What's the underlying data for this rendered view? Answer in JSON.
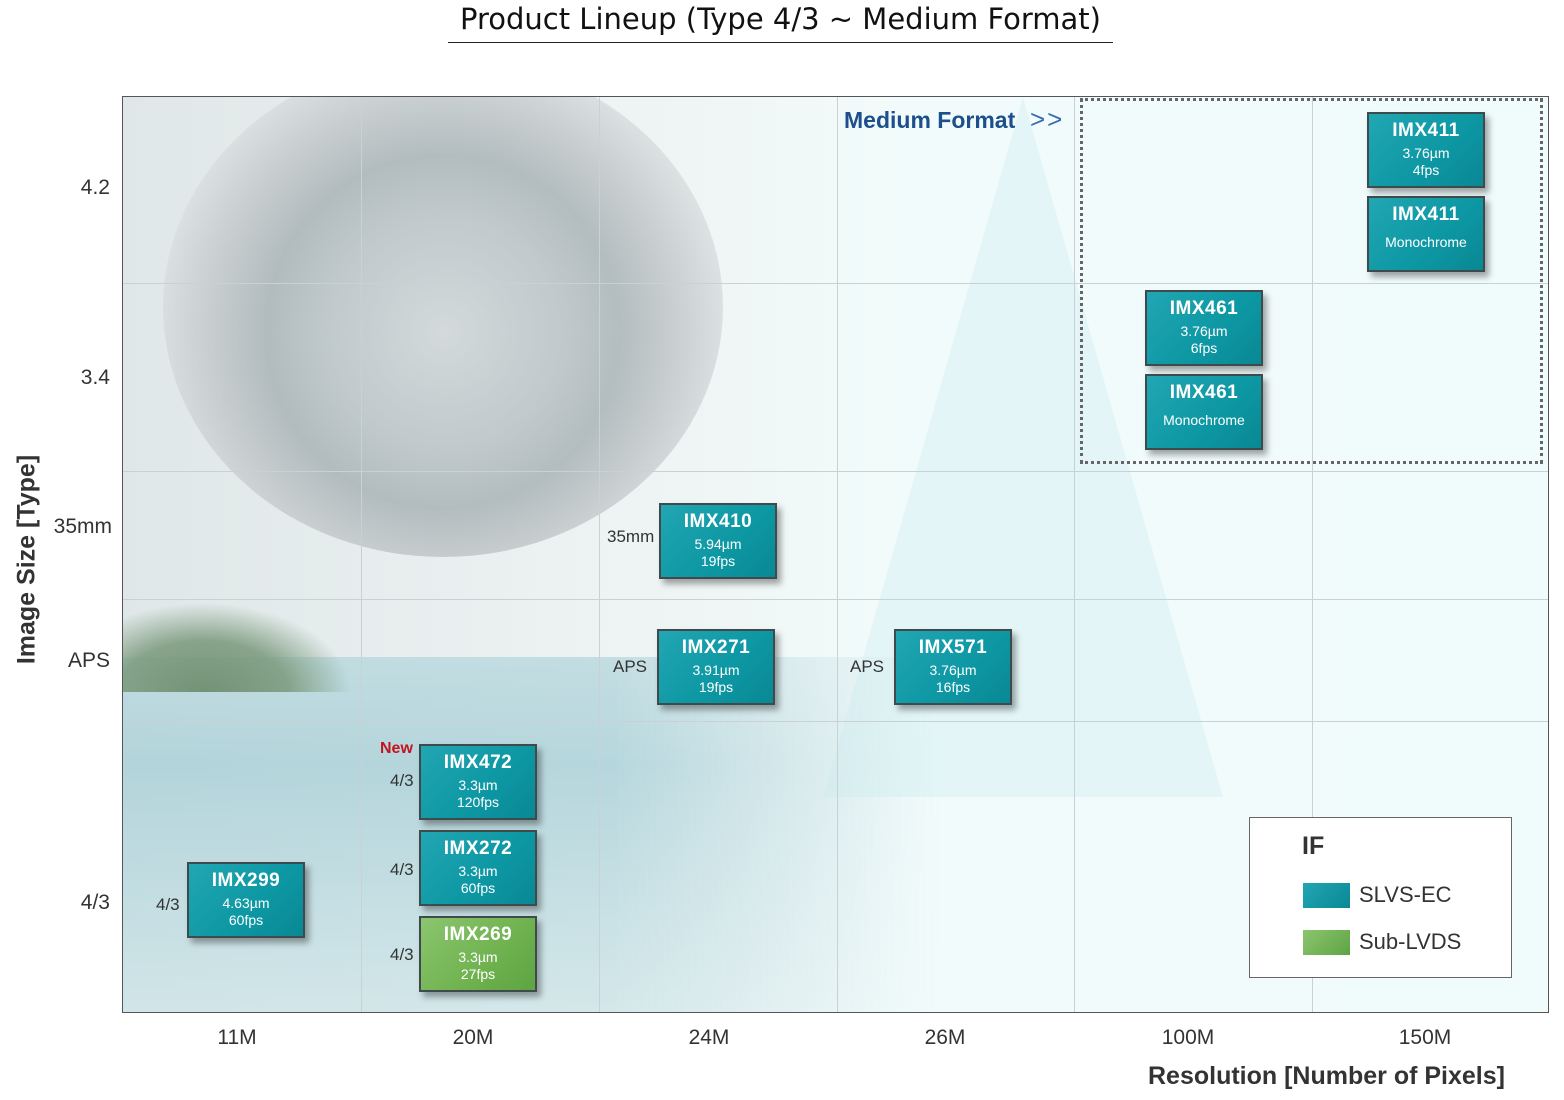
{
  "title": "Product Lineup (Type 4/3 ~ Medium Format)",
  "medium_format_label": "Medium Format",
  "medium_format_arrow": ">>",
  "y_axis": {
    "label": "Image Size [Type]",
    "ticks": [
      "4.2",
      "3.4",
      "35mm",
      "APS",
      "4/3"
    ]
  },
  "x_axis": {
    "label": "Resolution  [Number of Pixels]",
    "ticks": [
      "11M",
      "20M",
      "24M",
      "26M",
      "100M",
      "150M"
    ]
  },
  "colors": {
    "SLVS-EC": "#0f9aa6",
    "Sub-LVDS": "#72b552",
    "new": "#c4141c",
    "medium_format": "#1c4f8c"
  },
  "products": [
    {
      "name": "IMX411",
      "line1": "3.76µm",
      "line2": "4fps",
      "if": "SLVS-EC",
      "resolution": "150M",
      "size": "4.2",
      "size_label": ""
    },
    {
      "name": "IMX411",
      "line1": "Monochrome",
      "line2": "",
      "if": "SLVS-EC",
      "resolution": "150M",
      "size": "4.2",
      "size_label": ""
    },
    {
      "name": "IMX461",
      "line1": "3.76µm",
      "line2": "6fps",
      "if": "SLVS-EC",
      "resolution": "100M",
      "size": "3.4",
      "size_label": ""
    },
    {
      "name": "IMX461",
      "line1": "Monochrome",
      "line2": "",
      "if": "SLVS-EC",
      "resolution": "100M",
      "size": "3.4",
      "size_label": ""
    },
    {
      "name": "IMX410",
      "line1": "5.94µm",
      "line2": "19fps",
      "if": "SLVS-EC",
      "resolution": "24M",
      "size": "35mm",
      "size_label": "35mm"
    },
    {
      "name": "IMX271",
      "line1": "3.91µm",
      "line2": "19fps",
      "if": "SLVS-EC",
      "resolution": "24M",
      "size": "APS",
      "size_label": "APS"
    },
    {
      "name": "IMX571",
      "line1": "3.76µm",
      "line2": "16fps",
      "if": "SLVS-EC",
      "resolution": "26M",
      "size": "APS",
      "size_label": "APS"
    },
    {
      "name": "IMX472",
      "line1": "3.3µm",
      "line2": "120fps",
      "if": "SLVS-EC",
      "resolution": "20M",
      "size": "4/3",
      "size_label": "4/3",
      "badge": "New"
    },
    {
      "name": "IMX272",
      "line1": "3.3µm",
      "line2": "60fps",
      "if": "SLVS-EC",
      "resolution": "20M",
      "size": "4/3",
      "size_label": "4/3"
    },
    {
      "name": "IMX269",
      "line1": "3.3µm",
      "line2": "27fps",
      "if": "Sub-LVDS",
      "resolution": "20M",
      "size": "4/3",
      "size_label": "4/3"
    },
    {
      "name": "IMX299",
      "line1": "4.63µm",
      "line2": "60fps",
      "if": "SLVS-EC",
      "resolution": "11M",
      "size": "4/3",
      "size_label": "4/3"
    }
  ],
  "legend": {
    "title": "IF",
    "items": [
      "SLVS-EC",
      "Sub-LVDS"
    ]
  }
}
